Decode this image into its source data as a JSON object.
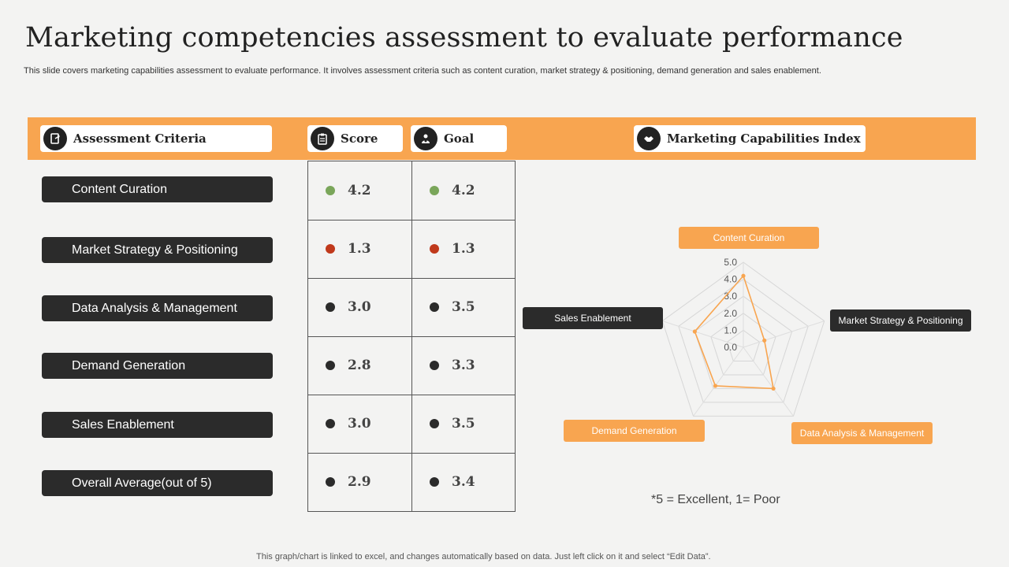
{
  "title": "Marketing competencies assessment to evaluate performance",
  "subtitle": "This slide covers marketing capabilities assessment to evaluate performance. It involves assessment criteria such as content curation, market strategy & positioning, demand generation and sales enablement.",
  "headers": {
    "criteria": "Assessment Criteria",
    "score": "Score",
    "goal": "Goal",
    "index": "Marketing Capabilities Index"
  },
  "header_icons": [
    "document-share-icon",
    "clipboard-icon",
    "target-person-icon",
    "handshake-icon"
  ],
  "rows": [
    {
      "criterion": "Content Curation",
      "score": "4.2",
      "goal": "4.2",
      "score_color": "#7aa65a",
      "goal_color": "#7aa65a"
    },
    {
      "criterion": "Market Strategy & Positioning",
      "score": "1.3",
      "goal": "1.3",
      "score_color": "#c0391b",
      "goal_color": "#c0391b"
    },
    {
      "criterion": "Data Analysis & Management",
      "score": "3.0",
      "goal": "3.5",
      "score_color": "#2b2b2b",
      "goal_color": "#2b2b2b"
    },
    {
      "criterion": "Demand Generation",
      "score": "2.8",
      "goal": "3.3",
      "score_color": "#2b2b2b",
      "goal_color": "#2b2b2b"
    },
    {
      "criterion": "Sales Enablement",
      "score": "3.0",
      "goal": "3.5",
      "score_color": "#2b2b2b",
      "goal_color": "#2b2b2b"
    },
    {
      "criterion": "Overall Average(out of 5)",
      "score": "2.9",
      "goal": "3.4",
      "score_color": "#2b2b2b",
      "goal_color": "#2b2b2b"
    }
  ],
  "chart_data": {
    "type": "radar",
    "categories": [
      "Content Curation",
      "Market Strategy & Positioning",
      "Data Analysis & Management",
      "Demand Generation",
      "Sales Enablement"
    ],
    "series": [
      {
        "values": [
          4.2,
          1.3,
          3.0,
          2.8,
          3.0
        ],
        "color": "#f8a550"
      }
    ],
    "tick_labels": [
      "0.0",
      "1.0",
      "2.0",
      "3.0",
      "4.0",
      "5.0"
    ],
    "rlim": [
      0,
      5
    ],
    "grid": true
  },
  "note": "*5 = Excellent,  1= Poor",
  "footer": "This graph/chart is linked to excel,  and changes automatically based on data. Just left click on it and select “Edit Data”.",
  "colors": {
    "accent": "#f8a550",
    "dark": "#2b2b2b",
    "good": "#7aa65a",
    "poor": "#c0391b"
  }
}
